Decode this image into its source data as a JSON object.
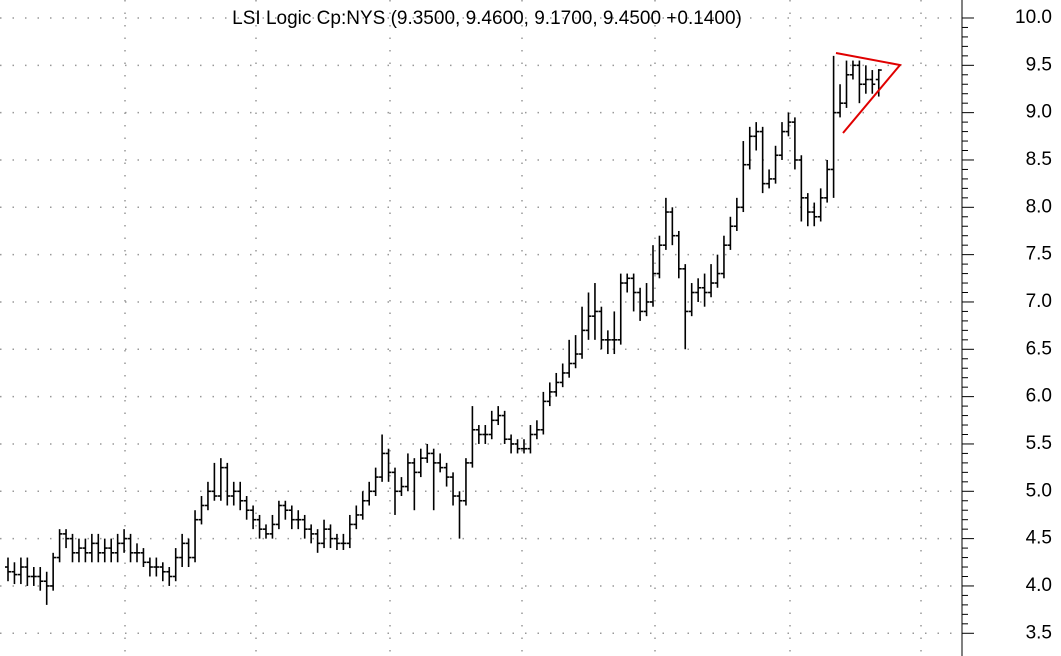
{
  "chart_data": {
    "type": "ohlc",
    "title": "LSI Logic Cp:NYS (9.3500, 9.4600, 9.1700, 9.4500 +0.1400)",
    "color": "#000000",
    "grid": true,
    "ylim": [
      3.26,
      10.19
    ],
    "yticks": [
      3.5,
      {
        "value": 4,
        "label": "4.0"
      },
      4.5,
      {
        "value": 5,
        "label": "5.0"
      },
      5.5,
      {
        "value": 6,
        "label": "6.0"
      },
      6.5,
      {
        "value": 7,
        "label": "7.0"
      },
      7.5,
      {
        "value": 8,
        "label": "8.0"
      },
      8.5,
      {
        "value": 9,
        "label": "9.0"
      },
      9.5,
      {
        "value": 10,
        "label": "10.0"
      }
    ],
    "open": [
      4.2,
      4.15,
      4.12,
      4.2,
      4.1,
      4.1,
      4.05,
      4.0,
      4.3,
      4.55,
      4.5,
      4.35,
      4.4,
      4.35,
      4.45,
      4.35,
      4.4,
      4.35,
      4.45,
      4.5,
      4.35,
      4.35,
      4.25,
      4.2,
      4.2,
      4.15,
      4.1,
      4.3,
      4.45,
      4.3,
      4.7,
      4.85,
      5.0,
      4.95,
      5.25,
      4.95,
      5.0,
      4.9,
      4.8,
      4.7,
      4.6,
      4.55,
      4.65,
      4.85,
      4.8,
      4.7,
      4.7,
      4.6,
      4.55,
      4.45,
      4.6,
      4.5,
      4.45,
      4.45,
      4.65,
      4.75,
      4.9,
      5.0,
      5.15,
      5.4,
      5.2,
      5.0,
      5.05,
      5.3,
      5.2,
      5.35,
      5.4,
      5.3,
      5.25,
      5.15,
      4.95,
      4.9,
      5.3,
      5.65,
      5.6,
      5.6,
      5.75,
      5.8,
      5.55,
      5.5,
      5.45,
      5.45,
      5.6,
      5.65,
      5.95,
      6.05,
      6.15,
      6.25,
      6.35,
      6.45,
      6.7,
      6.85,
      6.9,
      6.6,
      6.6,
      6.6,
      7.2,
      7.25,
      7.1,
      6.9,
      7.0,
      7.3,
      7.6,
      7.95,
      7.7,
      7.35,
      6.9,
      7.1,
      7.15,
      7.1,
      7.2,
      7.3,
      7.6,
      7.8,
      8.0,
      8.45,
      8.75,
      8.8,
      8.25,
      8.3,
      8.55,
      8.8,
      8.9,
      8.5,
      8.1,
      7.95,
      7.9,
      8.1,
      8.4,
      9.0,
      9.1,
      9.4,
      9.5,
      9.3,
      9.35,
      9.35
    ],
    "high": [
      4.3,
      4.25,
      4.3,
      4.3,
      4.2,
      4.2,
      4.15,
      4.35,
      4.6,
      4.6,
      4.55,
      4.5,
      4.5,
      4.55,
      4.55,
      4.5,
      4.5,
      4.55,
      4.6,
      4.55,
      4.45,
      4.4,
      4.3,
      4.3,
      4.25,
      4.2,
      4.4,
      4.55,
      4.5,
      4.8,
      4.95,
      5.1,
      5.3,
      5.35,
      5.3,
      5.1,
      5.1,
      4.95,
      4.85,
      4.75,
      4.65,
      4.75,
      4.9,
      4.9,
      4.85,
      4.8,
      4.75,
      4.65,
      4.6,
      4.7,
      4.65,
      4.55,
      4.55,
      4.75,
      4.85,
      5.0,
      5.1,
      5.25,
      5.6,
      5.45,
      5.25,
      5.15,
      5.4,
      5.35,
      5.45,
      5.5,
      5.45,
      5.4,
      5.3,
      5.2,
      5.0,
      5.35,
      5.9,
      5.7,
      5.7,
      5.85,
      5.9,
      5.85,
      5.6,
      5.55,
      5.55,
      5.7,
      5.75,
      6.05,
      6.15,
      6.25,
      6.35,
      6.6,
      6.65,
      6.95,
      7.1,
      7.2,
      6.95,
      6.7,
      6.9,
      7.3,
      7.3,
      7.3,
      7.15,
      7.2,
      7.6,
      7.7,
      8.1,
      8.0,
      7.75,
      7.4,
      7.2,
      7.25,
      7.3,
      7.4,
      7.5,
      7.7,
      7.9,
      8.1,
      8.7,
      8.85,
      8.9,
      8.85,
      8.4,
      8.65,
      8.9,
      9.0,
      8.95,
      8.55,
      8.15,
      8.05,
      8.2,
      8.5,
      9.6,
      9.3,
      9.55,
      9.55,
      9.55,
      9.5,
      9.45,
      9.46
    ],
    "low": [
      4.05,
      4.02,
      4.02,
      4.0,
      4.0,
      3.95,
      3.8,
      3.95,
      4.25,
      4.4,
      4.25,
      4.25,
      4.25,
      4.25,
      4.25,
      4.25,
      4.25,
      4.25,
      4.35,
      4.25,
      4.25,
      4.2,
      4.1,
      4.1,
      4.05,
      4.0,
      4.05,
      4.2,
      4.2,
      4.25,
      4.65,
      4.8,
      4.9,
      4.9,
      4.85,
      4.85,
      4.8,
      4.7,
      4.6,
      4.5,
      4.5,
      4.5,
      4.6,
      4.7,
      4.6,
      4.6,
      4.5,
      4.45,
      4.35,
      4.4,
      4.4,
      4.38,
      4.38,
      4.4,
      4.6,
      4.7,
      4.85,
      4.95,
      5.1,
      5.1,
      4.75,
      4.95,
      5.0,
      4.8,
      5.15,
      5.3,
      4.8,
      5.2,
      5.05,
      4.85,
      4.5,
      4.85,
      5.25,
      5.5,
      5.5,
      5.55,
      5.7,
      5.5,
      5.4,
      5.4,
      5.4,
      5.4,
      5.55,
      5.6,
      5.9,
      6.0,
      6.1,
      6.2,
      6.3,
      6.4,
      6.6,
      6.6,
      6.5,
      6.45,
      6.45,
      6.55,
      7.1,
      6.9,
      6.8,
      6.85,
      6.95,
      7.25,
      7.55,
      7.6,
      7.25,
      6.5,
      6.85,
      7.0,
      6.95,
      7.05,
      7.15,
      7.25,
      7.55,
      7.75,
      7.95,
      8.4,
      8.6,
      8.15,
      8.2,
      8.25,
      8.5,
      8.75,
      8.4,
      7.85,
      7.8,
      7.8,
      7.85,
      8.05,
      8.1,
      8.95,
      9.05,
      9.35,
      9.1,
      9.2,
      9.2,
      9.17
    ],
    "close": [
      4.15,
      4.12,
      4.2,
      4.1,
      4.1,
      4.05,
      4.0,
      4.3,
      4.55,
      4.5,
      4.35,
      4.4,
      4.35,
      4.45,
      4.35,
      4.4,
      4.35,
      4.45,
      4.5,
      4.35,
      4.35,
      4.25,
      4.2,
      4.2,
      4.15,
      4.1,
      4.3,
      4.45,
      4.3,
      4.7,
      4.85,
      5.0,
      4.95,
      5.25,
      4.95,
      5.0,
      4.9,
      4.8,
      4.7,
      4.6,
      4.55,
      4.65,
      4.85,
      4.8,
      4.7,
      4.7,
      4.6,
      4.55,
      4.45,
      4.6,
      4.5,
      4.45,
      4.45,
      4.65,
      4.75,
      4.9,
      5.0,
      5.15,
      5.4,
      5.2,
      5.0,
      5.05,
      5.3,
      5.2,
      5.35,
      5.4,
      5.3,
      5.25,
      5.15,
      4.95,
      4.9,
      5.3,
      5.65,
      5.6,
      5.6,
      5.75,
      5.8,
      5.55,
      5.5,
      5.45,
      5.45,
      5.6,
      5.65,
      5.95,
      6.05,
      6.15,
      6.25,
      6.35,
      6.45,
      6.7,
      6.85,
      6.9,
      6.6,
      6.6,
      6.6,
      7.2,
      7.25,
      7.1,
      6.9,
      7.0,
      7.3,
      7.6,
      7.95,
      7.7,
      7.35,
      6.9,
      7.1,
      7.15,
      7.1,
      7.2,
      7.3,
      7.6,
      7.8,
      8.0,
      8.45,
      8.75,
      8.8,
      8.25,
      8.3,
      8.55,
      8.8,
      8.9,
      8.5,
      8.1,
      7.95,
      7.9,
      8.1,
      8.4,
      9.0,
      9.1,
      9.4,
      9.5,
      9.3,
      9.35,
      9.3,
      9.45
    ]
  }
}
